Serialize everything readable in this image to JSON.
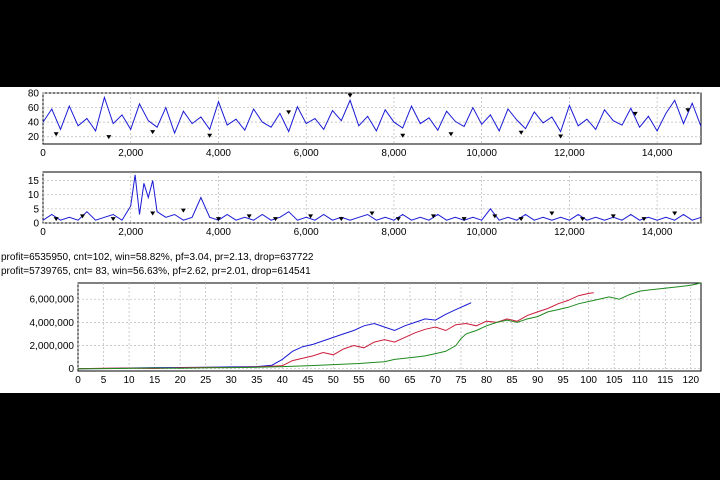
{
  "colors": {
    "background": "#ffffff",
    "letterbox": "#000000",
    "grid": "#b8b8b8",
    "series_blue": "#1a1ad6",
    "series_red": "#cc1d3b",
    "series_green": "#1f8a1f",
    "marker": "#000000"
  },
  "stats_lines": [
    "profit=6535950, cnt=102, win=58.82%, pf=3.04, pr=2.13, drop=637722",
    "profit=5739765, cnt= 83, win=56.63%, pf=2.62, pr=2.01, drop=614541"
  ],
  "chart_data": [
    {
      "type": "line",
      "title": "",
      "xlabel": "",
      "ylabel": "",
      "xlim": [
        0,
        15000
      ],
      "ylim": [
        10,
        80
      ],
      "x_ticks": [
        0,
        2000,
        4000,
        6000,
        8000,
        10000,
        12000,
        14000
      ],
      "x_tick_labels": [
        "0",
        "2,000",
        "4,000",
        "6,000",
        "8,000",
        "10,000",
        "12,000",
        "14,000"
      ],
      "y_ticks": [
        20,
        40,
        60,
        80
      ],
      "y_tick_labels": [
        "20",
        "40",
        "60",
        "80"
      ],
      "grid": true,
      "series": [
        {
          "color": "#1a1ad6",
          "x": [
            0,
            200,
            400,
            600,
            800,
            1000,
            1200,
            1400,
            1600,
            1800,
            2000,
            2200,
            2400,
            2600,
            2800,
            3000,
            3200,
            3400,
            3600,
            3800,
            4000,
            4200,
            4400,
            4600,
            4800,
            5000,
            5200,
            5400,
            5600,
            5800,
            6000,
            6200,
            6400,
            6600,
            6800,
            7000,
            7200,
            7400,
            7600,
            7800,
            8000,
            8200,
            8400,
            8600,
            8800,
            9000,
            9200,
            9400,
            9600,
            9800,
            10000,
            10200,
            10400,
            10600,
            10800,
            11000,
            11200,
            11400,
            11600,
            11800,
            12000,
            12200,
            12400,
            12600,
            12800,
            13000,
            13200,
            13400,
            13600,
            13800,
            14000,
            14200,
            14400,
            14600,
            14800,
            15000
          ],
          "y": [
            40,
            58,
            30,
            62,
            35,
            45,
            28,
            74,
            38,
            50,
            30,
            65,
            42,
            33,
            60,
            25,
            55,
            38,
            47,
            30,
            68,
            36,
            44,
            29,
            58,
            40,
            33,
            52,
            27,
            61,
            38,
            45,
            30,
            56,
            42,
            70,
            35,
            48,
            28,
            57,
            40,
            32,
            62,
            38,
            46,
            29,
            55,
            41,
            34,
            60,
            37,
            50,
            28,
            58,
            43,
            31,
            54,
            39,
            47,
            27,
            63,
            35,
            44,
            30,
            57,
            42,
            36,
            59,
            33,
            48,
            28,
            52,
            70,
            38,
            66,
            34
          ]
        }
      ],
      "markers": {
        "x": [
          300,
          1500,
          2500,
          3800,
          5600,
          7000,
          8200,
          9300,
          10900,
          11800,
          13500,
          14700
        ],
        "y": [
          22,
          18,
          25,
          20,
          52,
          75,
          20,
          22,
          24,
          19,
          50,
          55
        ]
      }
    },
    {
      "type": "line",
      "title": "",
      "xlabel": "",
      "ylabel": "",
      "xlim": [
        0,
        15000
      ],
      "ylim": [
        0,
        18
      ],
      "x_ticks": [
        0,
        2000,
        4000,
        6000,
        8000,
        10000,
        12000,
        14000
      ],
      "x_tick_labels": [
        "0",
        "2,000",
        "4,000",
        "6,000",
        "8,000",
        "10,000",
        "12,000",
        "14,000"
      ],
      "y_ticks": [
        0,
        5,
        10,
        15
      ],
      "y_tick_labels": [
        "0",
        "5",
        "10",
        "15"
      ],
      "grid": true,
      "series": [
        {
          "color": "#1a1ad6",
          "x": [
            0,
            200,
            400,
            600,
            800,
            1000,
            1200,
            1400,
            1600,
            1800,
            2000,
            2100,
            2200,
            2300,
            2400,
            2500,
            2600,
            2800,
            3000,
            3200,
            3400,
            3600,
            3800,
            4000,
            4200,
            4400,
            4600,
            4800,
            5000,
            5200,
            5400,
            5600,
            5800,
            6000,
            6200,
            6400,
            6600,
            6800,
            7000,
            7200,
            7400,
            7600,
            7800,
            8000,
            8200,
            8400,
            8600,
            8800,
            9000,
            9200,
            9400,
            9600,
            9800,
            10000,
            10200,
            10400,
            10600,
            10800,
            11000,
            11200,
            11400,
            11600,
            11800,
            12000,
            12200,
            12400,
            12600,
            12800,
            13000,
            13200,
            13400,
            13600,
            13800,
            14000,
            14200,
            14400,
            14600,
            14800,
            15000
          ],
          "y": [
            1,
            3,
            1,
            2,
            1,
            4,
            1,
            2,
            3,
            1,
            6,
            17,
            3,
            14,
            9,
            15,
            4,
            2,
            3,
            1,
            2,
            9,
            2,
            1,
            3,
            1,
            2,
            1,
            3,
            1,
            2,
            4,
            1,
            2,
            1,
            3,
            1,
            2,
            1,
            2,
            3,
            1,
            2,
            1,
            3,
            1,
            2,
            1,
            3,
            1,
            2,
            1,
            2,
            1,
            5,
            1,
            2,
            1,
            3,
            1,
            2,
            1,
            2,
            1,
            3,
            1,
            2,
            1,
            2,
            1,
            3,
            1,
            2,
            1,
            2,
            1,
            3,
            1,
            2
          ]
        }
      ],
      "markers": {
        "x": [
          300,
          900,
          1600,
          2500,
          3200,
          4000,
          4700,
          5300,
          6100,
          6800,
          7500,
          8100,
          8900,
          9600,
          10300,
          10900,
          11600,
          12300,
          13000,
          13700,
          14400
        ],
        "y": [
          1,
          2,
          1,
          3,
          4,
          1,
          2,
          1,
          2,
          1,
          3,
          1,
          2,
          1,
          2,
          1,
          3,
          1,
          2,
          1,
          3
        ]
      }
    },
    {
      "type": "line",
      "title": "",
      "xlabel": "",
      "ylabel": "",
      "xlim": [
        0,
        122
      ],
      "ylim": [
        -200000,
        7400000
      ],
      "x_ticks": [
        0,
        5,
        10,
        15,
        20,
        25,
        30,
        35,
        40,
        45,
        50,
        55,
        60,
        65,
        70,
        75,
        80,
        85,
        90,
        95,
        100,
        105,
        110,
        115,
        120
      ],
      "x_tick_labels": [
        "0",
        "5",
        "10",
        "15",
        "20",
        "25",
        "30",
        "35",
        "40",
        "45",
        "50",
        "55",
        "60",
        "65",
        "70",
        "75",
        "80",
        "85",
        "90",
        "95",
        "100",
        "105",
        "110",
        "115",
        "120"
      ],
      "y_ticks": [
        0,
        2000000,
        4000000,
        6000000
      ],
      "y_tick_labels": [
        "0",
        "2,000,000",
        "4,000,000",
        "6,000,000"
      ],
      "grid": true,
      "series": [
        {
          "color": "#1a1ad6",
          "x": [
            0,
            5,
            10,
            15,
            20,
            25,
            30,
            35,
            38,
            40,
            42,
            44,
            46,
            48,
            50,
            52,
            54,
            56,
            58,
            60,
            62,
            64,
            66,
            68,
            70,
            72,
            74,
            76,
            77
          ],
          "y": [
            0,
            20000,
            60000,
            90000,
            100000,
            120000,
            150000,
            180000,
            300000,
            800000,
            1500000,
            1900000,
            2100000,
            2400000,
            2700000,
            3000000,
            3300000,
            3700000,
            3900000,
            3600000,
            3300000,
            3700000,
            4000000,
            4300000,
            4200000,
            4700000,
            5100000,
            5500000,
            5700000
          ]
        },
        {
          "color": "#cc1d3b",
          "x": [
            0,
            5,
            10,
            15,
            20,
            25,
            30,
            35,
            40,
            42,
            44,
            46,
            48,
            50,
            52,
            54,
            56,
            58,
            60,
            62,
            64,
            66,
            68,
            70,
            72,
            74,
            76,
            78,
            80,
            82,
            84,
            86,
            88,
            90,
            92,
            94,
            96,
            98,
            100,
            101
          ],
          "y": [
            0,
            30000,
            50000,
            20000,
            80000,
            110000,
            100000,
            150000,
            250000,
            700000,
            900000,
            1100000,
            1400000,
            1200000,
            1700000,
            2000000,
            1800000,
            2300000,
            2500000,
            2300000,
            2700000,
            3100000,
            3400000,
            3600000,
            3300000,
            3800000,
            3900000,
            3700000,
            4100000,
            4000000,
            4300000,
            4100000,
            4600000,
            4900000,
            5200000,
            5600000,
            5900000,
            6300000,
            6500000,
            6550000
          ]
        },
        {
          "color": "#1f8a1f",
          "x": [
            0,
            5,
            10,
            15,
            20,
            25,
            30,
            35,
            40,
            45,
            50,
            55,
            60,
            62,
            64,
            66,
            68,
            70,
            72,
            74,
            75,
            76,
            78,
            80,
            82,
            84,
            86,
            88,
            90,
            92,
            94,
            96,
            98,
            100,
            102,
            104,
            106,
            108,
            110,
            112,
            114,
            116,
            118,
            120,
            122
          ],
          "y": [
            0,
            10000,
            30000,
            60000,
            40000,
            80000,
            90000,
            120000,
            180000,
            250000,
            350000,
            450000,
            600000,
            800000,
            900000,
            1000000,
            1100000,
            1300000,
            1500000,
            2000000,
            2600000,
            3000000,
            3300000,
            3700000,
            4000000,
            4200000,
            4000000,
            4300000,
            4500000,
            4900000,
            5100000,
            5300000,
            5600000,
            5800000,
            6000000,
            6200000,
            6000000,
            6400000,
            6700000,
            6800000,
            6900000,
            7000000,
            7100000,
            7200000,
            7400000
          ]
        }
      ]
    }
  ]
}
